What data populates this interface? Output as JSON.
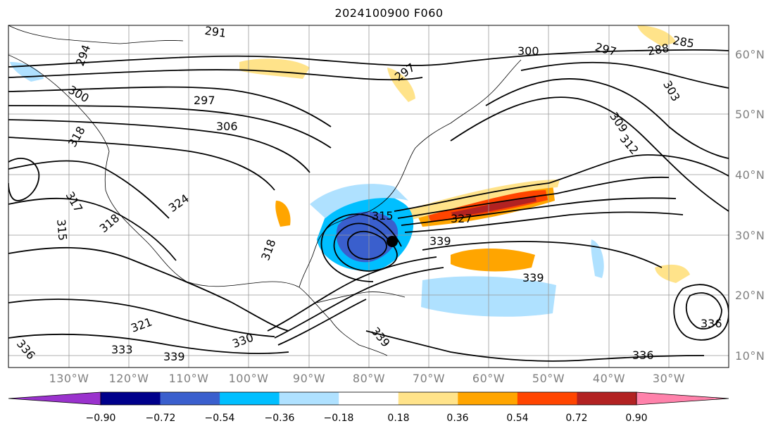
{
  "title": "2024100900 F060",
  "map": {
    "type": "contour-map",
    "region": "North Atlantic / North America",
    "projection": "lat-lon",
    "lon_range": [
      -140,
      -20
    ],
    "lat_range": [
      7,
      65
    ],
    "coastline_color": "#000000",
    "grid_color": "#999999",
    "storm_marker": {
      "lon": -75,
      "lat": 29
    }
  },
  "lat_labels": [
    "60°N",
    "50°N",
    "40°N",
    "30°N",
    "20°N",
    "10°N"
  ],
  "lon_labels": [
    "130°W",
    "120°W",
    "110°W",
    "100°W",
    "90°W",
    "80°W",
    "70°W",
    "60°W",
    "50°W",
    "40°W",
    "30°W"
  ],
  "contour_labels": [
    "291",
    "294",
    "297",
    "300",
    "306",
    "318",
    "321",
    "324",
    "315",
    "317",
    "336",
    "339",
    "333",
    "330",
    "309",
    "312",
    "303",
    "285",
    "288",
    "327",
    "297",
    "339",
    "336"
  ],
  "colorbar": {
    "ticks": [
      "−0.90",
      "−0.72",
      "−0.54",
      "−0.36",
      "−0.18",
      "0.18",
      "0.36",
      "0.54",
      "0.72",
      "0.90"
    ],
    "colors": [
      "#9a32cd",
      "#00008b",
      "#3a5fcd",
      "#00bfff",
      "#afe1ff",
      "#ffffff",
      "#ffe38a",
      "#ffa500",
      "#ff4500",
      "#b22222",
      "#ff82ab"
    ]
  }
}
